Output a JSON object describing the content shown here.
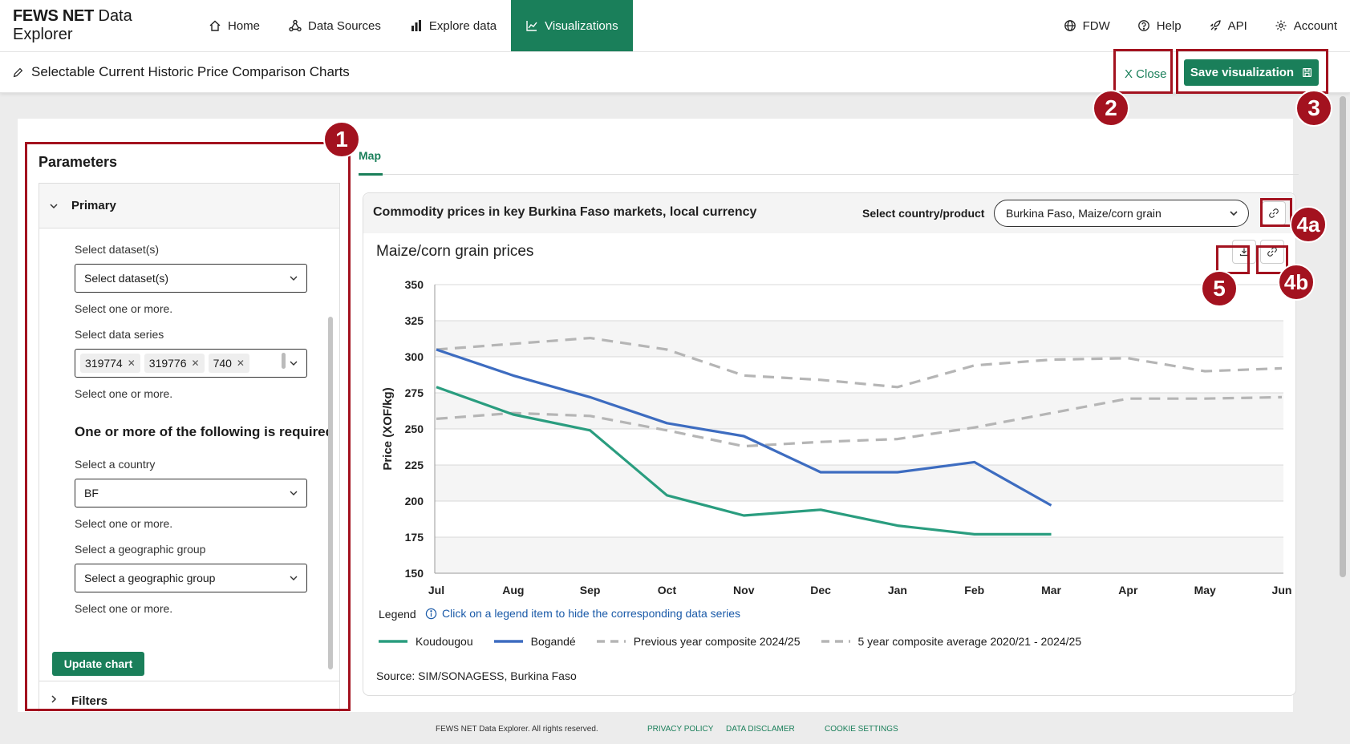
{
  "nav": {
    "brand_bold": "FEWS NET",
    "brand_rest": " Data Explorer",
    "items": [
      {
        "label": "Home",
        "icon": "home-icon"
      },
      {
        "label": "Data Sources",
        "icon": "network-icon"
      },
      {
        "label": "Explore data",
        "icon": "bar-chart-icon"
      },
      {
        "label": "Visualizations",
        "icon": "line-chart-icon"
      }
    ],
    "right": [
      {
        "label": "FDW",
        "icon": "globe-icon"
      },
      {
        "label": "Help",
        "icon": "help-icon"
      },
      {
        "label": "API",
        "icon": "rocket-icon"
      },
      {
        "label": "Account",
        "icon": "gear-icon"
      }
    ]
  },
  "subheader": {
    "title": "Selectable Current Historic Price Comparison Charts",
    "close_label": "X Close",
    "save_label": "Save visualization"
  },
  "params": {
    "title": "Parameters",
    "primary_label": "Primary",
    "dataset_label": "Select dataset(s)",
    "dataset_placeholder": "Select dataset(s)",
    "dataset_hint": "Select one or more.",
    "series_label": "Select data series",
    "series_chips": [
      "319774",
      "319776",
      "740"
    ],
    "series_hint": "Select one or more.",
    "required_text": "One or more of the following is required",
    "country_label": "Select a country",
    "country_value": "BF",
    "country_hint": "Select one or more.",
    "geo_label": "Select a geographic group",
    "geo_placeholder": "Select a geographic group",
    "geo_hint": "Select one or more.",
    "update_label": "Update chart",
    "filters_label": "Filters"
  },
  "tabs": {
    "map": "Map"
  },
  "card": {
    "title": "Commodity prices in key Burkina Faso markets, local currency",
    "select_label": "Select country/product",
    "select_value": "Burkina Faso, Maize/corn grain",
    "chart_title": "Maize/corn grain prices",
    "legend_label": "Legend",
    "legend_info": "Click on a legend item to hide the corresponding data series",
    "source": "Source: SIM/SONAGESS, Burkina Faso"
  },
  "chart_data": {
    "type": "line",
    "categories": [
      "Jul",
      "Aug",
      "Sep",
      "Oct",
      "Nov",
      "Dec",
      "Jan",
      "Feb",
      "Mar",
      "Apr",
      "May",
      "Jun"
    ],
    "ylabel": "Price (XOF/kg)",
    "ylim": [
      150,
      350
    ],
    "yticks": [
      150,
      175,
      200,
      225,
      250,
      275,
      300,
      325,
      350
    ],
    "series": [
      {
        "name": "Koudougou",
        "color": "#2a9d7f",
        "dashed": false,
        "values": [
          279,
          260,
          249,
          204,
          190,
          194,
          183,
          177,
          177,
          null,
          null,
          null
        ]
      },
      {
        "name": "Bogandé",
        "color": "#3d6cc0",
        "dashed": false,
        "values": [
          305,
          287,
          272,
          254,
          245,
          220,
          220,
          227,
          197,
          null,
          null,
          null
        ]
      },
      {
        "name": "Previous year composite 2024/25",
        "color": "#b5b5b5",
        "dashed": true,
        "values": [
          305,
          309,
          313,
          305,
          287,
          284,
          279,
          294,
          298,
          299,
          290,
          292
        ]
      },
      {
        "name": "5 year composite average 2020/21 - 2024/25",
        "color": "#b5b5b5",
        "dashed": true,
        "values": [
          257,
          261,
          259,
          249,
          238,
          241,
          243,
          251,
          261,
          271,
          271,
          272
        ]
      }
    ]
  },
  "footer": {
    "copyright": "FEWS NET Data Explorer. All rights reserved.",
    "privacy": "PRIVACY POLICY",
    "disclaimer": "DATA DISCLAMER",
    "cookie": "COOKIE SETTINGS"
  },
  "annotations": [
    "1",
    "2",
    "3",
    "4a",
    "4b",
    "5"
  ],
  "colors": {
    "accent": "#1a7f5a",
    "annotation": "#a3121f"
  }
}
